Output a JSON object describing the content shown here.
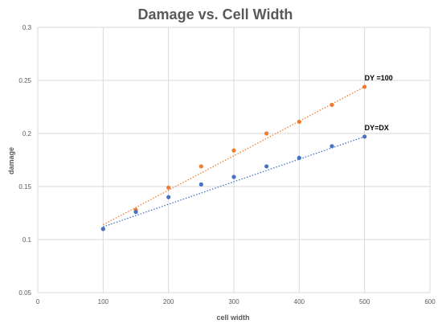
{
  "chart_data": {
    "type": "scatter",
    "title": "Damage vs. Cell Width",
    "xlabel": "cell width",
    "ylabel": "damage",
    "xlim": [
      0,
      600
    ],
    "ylim": [
      0.05,
      0.3
    ],
    "xticks": [
      "0",
      "100",
      "200",
      "300",
      "400",
      "500",
      "600"
    ],
    "yticks": [
      "0.05",
      "0.1",
      "0.15",
      "0.2",
      "0.25",
      "0.3"
    ],
    "grid": true,
    "trendlines": true,
    "series": [
      {
        "name": "DY =100",
        "color": "#ED7D31",
        "x": [
          100,
          150,
          200,
          250,
          300,
          350,
          400,
          450,
          500
        ],
        "y": [
          0.11,
          0.128,
          0.149,
          0.169,
          0.184,
          0.2,
          0.211,
          0.227,
          0.244
        ],
        "trend": [
          [
            100,
            0.114
          ],
          [
            500,
            0.244
          ]
        ]
      },
      {
        "name": "DY=DX",
        "color": "#4472C4",
        "x": [
          100,
          150,
          200,
          250,
          300,
          350,
          400,
          450,
          500
        ],
        "y": [
          0.11,
          0.126,
          0.14,
          0.152,
          0.159,
          0.169,
          0.177,
          0.188,
          0.197
        ],
        "trend": [
          [
            100,
            0.112
          ],
          [
            500,
            0.197
          ]
        ]
      }
    ]
  }
}
